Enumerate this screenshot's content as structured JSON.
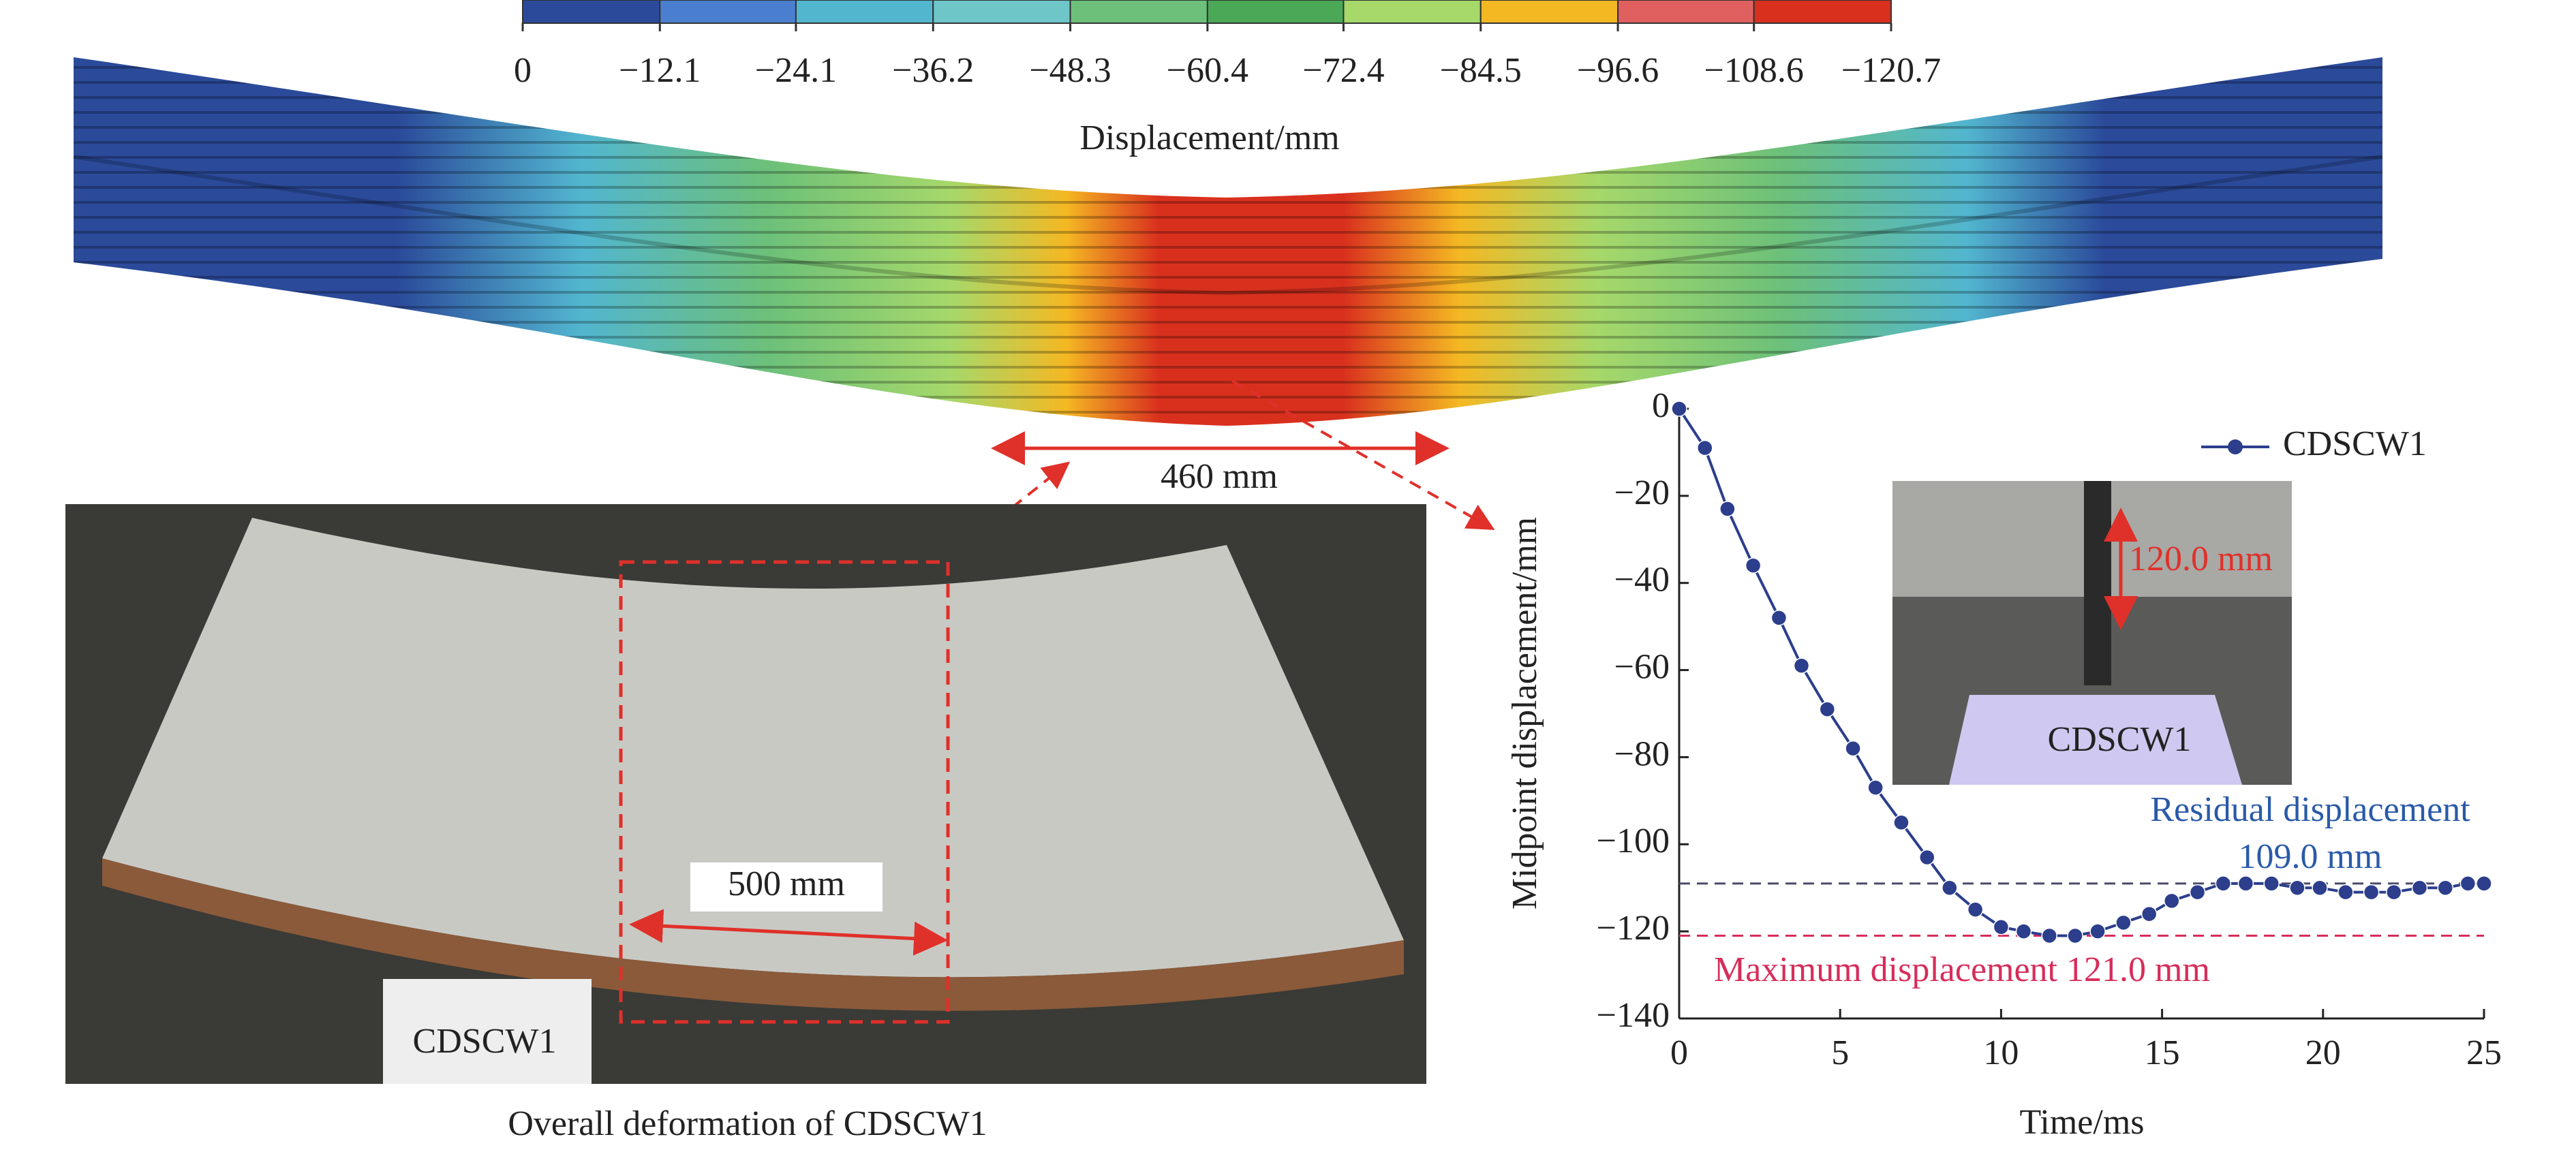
{
  "chart_data": [
    {
      "type": "line",
      "xlabel": "Time/ms",
      "ylabel": "Midpoint displacement/mm",
      "x": [
        0,
        0.8,
        1.5,
        2.3,
        3.1,
        3.8,
        4.6,
        5.4,
        6.1,
        6.9,
        7.7,
        8.4,
        9.2,
        10.0,
        10.7,
        11.5,
        12.3,
        13.0,
        13.8,
        14.6,
        15.3,
        16.1,
        16.9,
        17.6,
        18.4,
        19.2,
        19.9,
        20.7,
        21.5,
        22.2,
        23.0,
        23.8,
        24.5,
        25
      ],
      "series": [
        {
          "name": "CDSCW1",
          "color": "#2c3e8c",
          "values": [
            0,
            -9,
            -23,
            -36,
            -48,
            -59,
            -69,
            -78,
            -87,
            -95,
            -103,
            -110,
            -115,
            -119,
            -120,
            -121,
            -121,
            -120,
            -118,
            -116,
            -113,
            -111,
            -109,
            -109,
            -109,
            -110,
            -110,
            -111,
            -111,
            -111,
            -110,
            -110,
            -109,
            -109
          ]
        }
      ],
      "xlim": [
        0,
        25
      ],
      "xticks": [
        0,
        5,
        10,
        15,
        20,
        25
      ],
      "ylim": [
        -140,
        0
      ],
      "yticks": [
        {
          "value": -140,
          "label": "−140"
        },
        {
          "value": -120,
          "label": "−120"
        },
        {
          "value": -100,
          "label": "−100"
        },
        {
          "value": -80,
          "label": "−80"
        },
        {
          "value": -60,
          "label": "−60"
        },
        {
          "value": -40,
          "label": "−40"
        },
        {
          "value": -20,
          "label": "−20"
        },
        0
      ],
      "hlines": [
        {
          "value": -109,
          "color": "#4a4a6a"
        },
        {
          "value": -121,
          "color": "#d62d5a"
        }
      ],
      "annotations": [
        "Residual displacement",
        "109.0 mm",
        "Maximum displacement 121.0 mm"
      ],
      "legend": "upper right",
      "inset": {
        "dimension_label": "120.0 mm",
        "specimen_label": "CDSCW1"
      }
    },
    {
      "type": "colorbar",
      "title": "Displacement/mm",
      "xlim": [
        0,
        -120.7
      ],
      "xticks": [
        0,
        {
          "value": -12.1,
          "label": "−12.1"
        },
        {
          "value": -24.1,
          "label": "−24.1"
        },
        {
          "value": -36.2,
          "label": "−36.2"
        },
        {
          "value": -48.3,
          "label": "−48.3"
        },
        {
          "value": -60.4,
          "label": "−60.4"
        },
        {
          "value": -72.4,
          "label": "−72.4"
        },
        {
          "value": -84.5,
          "label": "−84.5"
        },
        {
          "value": -96.6,
          "label": "−96.6"
        },
        {
          "value": -108.6,
          "label": "−108.6"
        },
        {
          "value": -120.7,
          "label": "−120.7"
        }
      ],
      "colors": [
        "#2b4a9a",
        "#4a7fd0",
        "#52b6cf",
        "#6ec6c8",
        "#6cc07a",
        "#4aa857",
        "#a6d86a",
        "#f4b823",
        "#e06060",
        "#d9301e"
      ]
    }
  ],
  "contour": {
    "dimension_label": "460 mm"
  },
  "photo": {
    "dimension_label": "500 mm",
    "specimen_label": "CDSCW1",
    "caption": "Overall deformation of CDSCW1"
  }
}
